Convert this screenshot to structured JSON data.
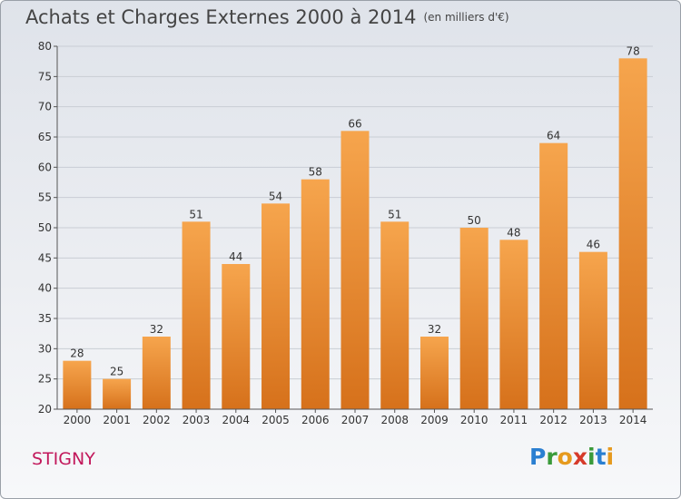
{
  "header": {
    "title": "Achats et Charges Externes 2000 à 2014",
    "unit": "(en milliers d'€)"
  },
  "footer": {
    "commune": "STIGNY",
    "logo_text": "Proxiti",
    "logo_letters": [
      {
        "ch": "P",
        "color": "#2a7fd1"
      },
      {
        "ch": "r",
        "color": "#3a9a3a"
      },
      {
        "ch": "o",
        "color": "#e69a1e"
      },
      {
        "ch": "x",
        "color": "#d63a2a"
      },
      {
        "ch": "i",
        "color": "#3a9a3a"
      },
      {
        "ch": "t",
        "color": "#2a7fd1"
      },
      {
        "ch": "i",
        "color": "#e69a1e"
      }
    ]
  },
  "colors": {
    "bar_top": "#f6a54d",
    "bar_bottom": "#d6711b",
    "text": "#333333",
    "title": "#444444",
    "commune": "#c2185b"
  },
  "chart_data": {
    "type": "bar",
    "categories": [
      "2000",
      "2001",
      "2002",
      "2003",
      "2004",
      "2005",
      "2006",
      "2007",
      "2008",
      "2009",
      "2010",
      "2011",
      "2012",
      "2013",
      "2014"
    ],
    "values": [
      28,
      25,
      32,
      51,
      44,
      54,
      58,
      66,
      51,
      32,
      50,
      48,
      64,
      46,
      78
    ],
    "ylim": [
      20,
      80
    ],
    "yticks": [
      20,
      25,
      30,
      35,
      40,
      45,
      50,
      55,
      60,
      65,
      70,
      75,
      80
    ],
    "grid": true,
    "data_labels": true
  }
}
